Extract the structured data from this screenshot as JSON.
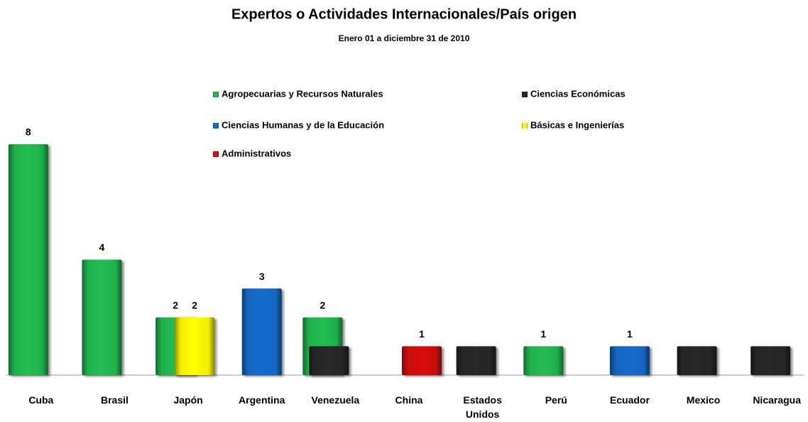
{
  "chart_data": {
    "type": "bar",
    "title": "Expertos o Actividades Internacionales/País origen",
    "subtitle": "Enero 01 a diciembre 31 de 2010",
    "categories": [
      "Cuba",
      "Brasil",
      "Japón",
      "Argentina",
      "Venezuela",
      "China",
      "Estados Unidos",
      "Perú",
      "Ecuador",
      "Mexico",
      "Nicaragua"
    ],
    "series": [
      {
        "name": "Agropecuarias y Recursos Naturales",
        "color": "#1fb04c",
        "show_labels": true,
        "values": [
          8,
          4,
          2,
          null,
          2,
          null,
          null,
          1,
          null,
          null,
          null
        ]
      },
      {
        "name": "Ciencias Económicas",
        "color": "#262626",
        "show_labels": false,
        "values": [
          null,
          null,
          null,
          null,
          1,
          null,
          1,
          null,
          null,
          1,
          1
        ]
      },
      {
        "name": "Ciencias Humanas y de la Educación",
        "color": "#1565c0",
        "show_labels": true,
        "values": [
          null,
          null,
          null,
          3,
          null,
          null,
          null,
          null,
          1,
          null,
          null
        ]
      },
      {
        "name": "Básicas e Ingenierías",
        "color": "#f2ee00",
        "show_labels": true,
        "values": [
          null,
          null,
          2,
          null,
          null,
          null,
          null,
          null,
          null,
          null,
          null
        ]
      },
      {
        "name": "Administrativos",
        "color": "#c81010",
        "show_labels": true,
        "values": [
          null,
          null,
          null,
          null,
          null,
          1,
          null,
          null,
          null,
          null,
          null
        ]
      }
    ],
    "ylim": [
      0,
      8
    ]
  }
}
